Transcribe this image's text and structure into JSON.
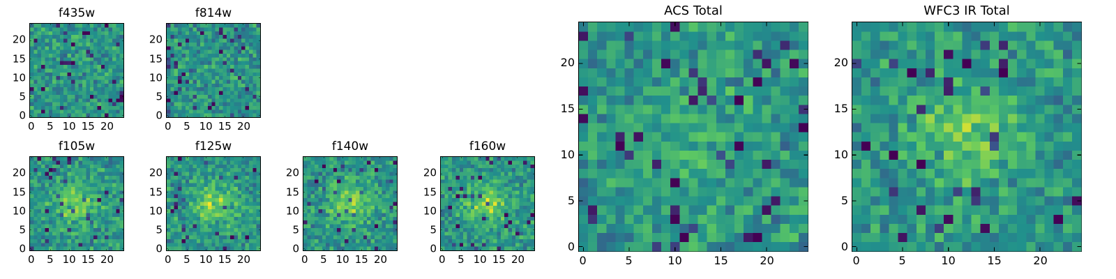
{
  "colormap": {
    "name": "viridis",
    "stops": [
      "#440154",
      "#3b528b",
      "#21918c",
      "#5ec962",
      "#fde725"
    ]
  },
  "chart_data": [
    {
      "id": "f435w",
      "type": "heatmap",
      "title": "f435w",
      "grid": false,
      "shape": [
        25,
        25
      ],
      "xlim": [
        0,
        25
      ],
      "ylim": [
        0,
        25
      ],
      "xticks": [
        0,
        5,
        10,
        15,
        20
      ],
      "yticks": [
        0,
        5,
        10,
        15,
        20
      ],
      "center_boost": 0.0,
      "seed": 11,
      "values": "noise-like mosaic (pixel values not recoverable)"
    },
    {
      "id": "f814w",
      "type": "heatmap",
      "title": "f814w",
      "grid": false,
      "shape": [
        25,
        25
      ],
      "xlim": [
        0,
        25
      ],
      "ylim": [
        0,
        25
      ],
      "xticks": [
        0,
        5,
        10,
        15,
        20
      ],
      "yticks": [
        0,
        5,
        10,
        15,
        20
      ],
      "center_boost": 0.0,
      "seed": 23,
      "values": "noise-like mosaic (pixel values not recoverable)"
    },
    {
      "id": "f105w",
      "type": "heatmap",
      "title": "f105w",
      "grid": false,
      "shape": [
        25,
        25
      ],
      "xlim": [
        0,
        25
      ],
      "ylim": [
        0,
        25
      ],
      "xticks": [
        0,
        5,
        10,
        15,
        20
      ],
      "yticks": [
        0,
        5,
        10,
        15,
        20
      ],
      "center_boost": 0.45,
      "seed": 37,
      "values": "noise with central bright source (pixel values not recoverable)"
    },
    {
      "id": "f125w",
      "type": "heatmap",
      "title": "f125w",
      "grid": false,
      "shape": [
        25,
        25
      ],
      "xlim": [
        0,
        25
      ],
      "ylim": [
        0,
        25
      ],
      "xticks": [
        0,
        5,
        10,
        15,
        20
      ],
      "yticks": [
        0,
        5,
        10,
        15,
        20
      ],
      "center_boost": 0.45,
      "seed": 41,
      "values": "noise with central bright source (pixel values not recoverable)"
    },
    {
      "id": "f140w",
      "type": "heatmap",
      "title": "f140w",
      "grid": false,
      "shape": [
        25,
        25
      ],
      "xlim": [
        0,
        25
      ],
      "ylim": [
        0,
        25
      ],
      "xticks": [
        0,
        5,
        10,
        15,
        20
      ],
      "yticks": [
        0,
        5,
        10,
        15,
        20
      ],
      "center_boost": 0.45,
      "seed": 53,
      "values": "noise with central bright source (pixel values not recoverable)"
    },
    {
      "id": "f160w",
      "type": "heatmap",
      "title": "f160w",
      "grid": false,
      "shape": [
        25,
        25
      ],
      "xlim": [
        0,
        25
      ],
      "ylim": [
        0,
        25
      ],
      "xticks": [
        0,
        5,
        10,
        15,
        20
      ],
      "yticks": [
        0,
        5,
        10,
        15,
        20
      ],
      "center_boost": 0.45,
      "seed": 67,
      "values": "noise with central bright source (pixel values not recoverable)"
    },
    {
      "id": "acs_total",
      "type": "heatmap",
      "title": "ACS Total",
      "grid": false,
      "shape": [
        25,
        25
      ],
      "xlim": [
        0,
        25
      ],
      "ylim": [
        0,
        25
      ],
      "xticks": [
        0,
        5,
        10,
        15,
        20
      ],
      "yticks": [
        0,
        5,
        10,
        15,
        20
      ],
      "center_boost": 0.18,
      "seed": 79,
      "values": "noise-like mosaic (pixel values not recoverable)"
    },
    {
      "id": "wfc3_ir_total",
      "type": "heatmap",
      "title": "WFC3 IR Total",
      "grid": false,
      "shape": [
        25,
        25
      ],
      "xlim": [
        0,
        25
      ],
      "ylim": [
        0,
        25
      ],
      "xticks": [
        0,
        5,
        10,
        15,
        20
      ],
      "yticks": [
        0,
        5,
        10,
        15,
        20
      ],
      "center_boost": 0.4,
      "seed": 97,
      "values": "noise with central bright source (pixel values not recoverable)"
    }
  ]
}
